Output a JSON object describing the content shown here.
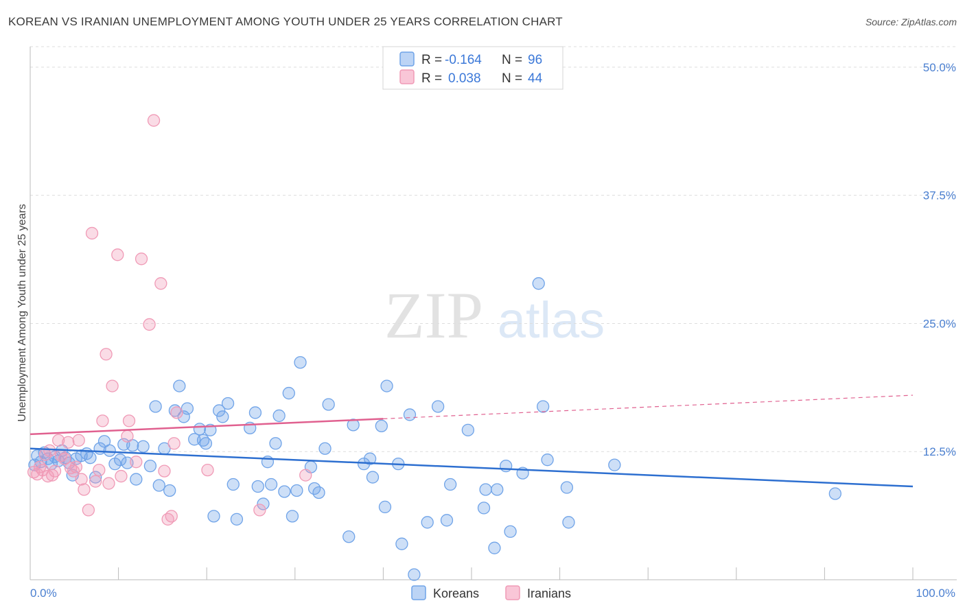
{
  "title": "KOREAN VS IRANIAN UNEMPLOYMENT AMONG YOUTH UNDER 25 YEARS CORRELATION CHART",
  "source": "Source: ZipAtlas.com",
  "watermark": {
    "zip": "ZIP",
    "atlas": "atlas"
  },
  "colors": {
    "korean": "#6fa3e8",
    "korean_line": "#2d6fd0",
    "iranian": "#f09ab6",
    "iranian_line": "#e0608f",
    "tick": "#4a7fd0"
  },
  "legend": {
    "r_label": "R =",
    "n_label": "N =",
    "korean_r": "-0.164",
    "korean_n": "96",
    "iranian_r": "0.038",
    "iranian_n": "44"
  },
  "chart_data": {
    "type": "scatter",
    "title": "KOREAN VS IRANIAN UNEMPLOYMENT AMONG YOUTH UNDER 25 YEARS CORRELATION CHART",
    "xlabel": "",
    "ylabel": "Unemployment Among Youth under 25 years",
    "xlim": [
      0,
      100
    ],
    "ylim": [
      0,
      52
    ],
    "x_tick_labels": [
      "0.0%",
      "100.0%"
    ],
    "y_ticks": [
      12.5,
      25.0,
      37.5,
      50.0
    ],
    "y_tick_labels": [
      "12.5%",
      "25.0%",
      "37.5%",
      "50.0%"
    ],
    "grid": true,
    "legend_position": "top-center",
    "series": [
      {
        "name": "Koreans",
        "trend": {
          "x0": 0,
          "y0": 12.8,
          "x1": 100,
          "y1": 9.1
        },
        "points": [
          [
            0.5,
            11.2
          ],
          [
            0.8,
            12.1
          ],
          [
            1.2,
            11.5
          ],
          [
            1.6,
            12.4
          ],
          [
            2.0,
            11.8
          ],
          [
            2.4,
            11.3
          ],
          [
            2.8,
            12.0
          ],
          [
            3.2,
            11.6
          ],
          [
            3.6,
            12.6
          ],
          [
            4.0,
            11.9
          ],
          [
            4.4,
            11.4
          ],
          [
            4.8,
            10.2
          ],
          [
            5.2,
            11.8
          ],
          [
            5.8,
            12.1
          ],
          [
            6.4,
            12.3
          ],
          [
            6.8,
            11.9
          ],
          [
            7.4,
            10.0
          ],
          [
            7.9,
            12.8
          ],
          [
            8.4,
            13.5
          ],
          [
            9.0,
            12.6
          ],
          [
            9.6,
            11.3
          ],
          [
            10.2,
            11.7
          ],
          [
            10.6,
            13.2
          ],
          [
            11.0,
            11.4
          ],
          [
            11.6,
            13.1
          ],
          [
            12.0,
            9.8
          ],
          [
            12.8,
            13.0
          ],
          [
            13.6,
            11.1
          ],
          [
            14.2,
            16.9
          ],
          [
            14.6,
            9.2
          ],
          [
            15.2,
            12.8
          ],
          [
            15.8,
            8.7
          ],
          [
            16.4,
            16.5
          ],
          [
            16.9,
            18.9
          ],
          [
            17.4,
            15.9
          ],
          [
            17.8,
            16.7
          ],
          [
            18.6,
            13.7
          ],
          [
            19.2,
            14.7
          ],
          [
            19.6,
            13.6
          ],
          [
            19.9,
            13.3
          ],
          [
            20.4,
            14.6
          ],
          [
            20.8,
            6.2
          ],
          [
            21.4,
            16.5
          ],
          [
            21.8,
            15.9
          ],
          [
            22.4,
            17.2
          ],
          [
            23.0,
            9.3
          ],
          [
            23.4,
            5.9
          ],
          [
            24.9,
            14.8
          ],
          [
            25.5,
            16.3
          ],
          [
            25.8,
            9.1
          ],
          [
            26.4,
            7.4
          ],
          [
            26.9,
            11.5
          ],
          [
            27.3,
            9.3
          ],
          [
            27.8,
            13.3
          ],
          [
            28.2,
            16.0
          ],
          [
            28.8,
            8.6
          ],
          [
            29.3,
            18.2
          ],
          [
            29.7,
            6.2
          ],
          [
            30.2,
            8.7
          ],
          [
            30.6,
            21.2
          ],
          [
            31.8,
            11.0
          ],
          [
            32.2,
            8.9
          ],
          [
            32.7,
            8.5
          ],
          [
            33.4,
            12.8
          ],
          [
            33.8,
            17.1
          ],
          [
            36.1,
            4.2
          ],
          [
            36.6,
            15.1
          ],
          [
            37.8,
            11.3
          ],
          [
            38.5,
            11.8
          ],
          [
            38.8,
            10.0
          ],
          [
            39.8,
            15.0
          ],
          [
            40.2,
            7.1
          ],
          [
            40.4,
            18.9
          ],
          [
            41.7,
            11.3
          ],
          [
            42.1,
            3.5
          ],
          [
            43.0,
            16.1
          ],
          [
            43.5,
            0.5
          ],
          [
            45.0,
            5.6
          ],
          [
            46.2,
            16.9
          ],
          [
            47.2,
            5.8
          ],
          [
            47.6,
            9.3
          ],
          [
            49.6,
            14.6
          ],
          [
            51.4,
            7.0
          ],
          [
            51.6,
            8.8
          ],
          [
            52.6,
            3.1
          ],
          [
            52.9,
            8.8
          ],
          [
            53.9,
            11.1
          ],
          [
            54.4,
            4.7
          ],
          [
            55.8,
            10.4
          ],
          [
            57.6,
            28.9
          ],
          [
            58.1,
            16.9
          ],
          [
            58.6,
            11.7
          ],
          [
            60.8,
            9.0
          ],
          [
            61.0,
            5.6
          ],
          [
            66.2,
            11.2
          ],
          [
            91.2,
            8.4
          ]
        ]
      },
      {
        "name": "Iranians",
        "trend": {
          "x0": 0,
          "y0": 14.2,
          "x1": 40,
          "y1": 15.7,
          "dash_x1": 100,
          "dash_y1": 18.0
        },
        "points": [
          [
            0.4,
            10.5
          ],
          [
            0.8,
            10.3
          ],
          [
            1.1,
            11.0
          ],
          [
            1.4,
            10.7
          ],
          [
            1.7,
            12.2
          ],
          [
            2.0,
            10.1
          ],
          [
            2.2,
            12.6
          ],
          [
            2.5,
            10.2
          ],
          [
            2.8,
            10.6
          ],
          [
            3.2,
            13.6
          ],
          [
            3.5,
            12.1
          ],
          [
            3.9,
            11.8
          ],
          [
            4.3,
            13.4
          ],
          [
            4.6,
            10.9
          ],
          [
            4.9,
            10.6
          ],
          [
            5.2,
            11.0
          ],
          [
            5.5,
            13.6
          ],
          [
            5.8,
            9.8
          ],
          [
            6.1,
            8.8
          ],
          [
            6.6,
            6.8
          ],
          [
            7.0,
            33.8
          ],
          [
            7.4,
            9.6
          ],
          [
            7.8,
            10.7
          ],
          [
            8.2,
            15.5
          ],
          [
            8.6,
            22.0
          ],
          [
            8.9,
            9.4
          ],
          [
            9.3,
            18.9
          ],
          [
            9.9,
            31.7
          ],
          [
            10.3,
            10.1
          ],
          [
            11.0,
            14.0
          ],
          [
            11.2,
            15.5
          ],
          [
            12.0,
            11.5
          ],
          [
            12.6,
            31.3
          ],
          [
            13.5,
            24.9
          ],
          [
            14.0,
            44.8
          ],
          [
            14.8,
            28.9
          ],
          [
            15.2,
            10.6
          ],
          [
            15.6,
            5.9
          ],
          [
            16.0,
            6.2
          ],
          [
            16.3,
            13.3
          ],
          [
            16.6,
            16.3
          ],
          [
            20.1,
            10.7
          ],
          [
            26.0,
            6.8
          ],
          [
            31.2,
            10.2
          ]
        ]
      }
    ]
  },
  "bottom_legend": [
    "Koreans",
    "Iranians"
  ]
}
